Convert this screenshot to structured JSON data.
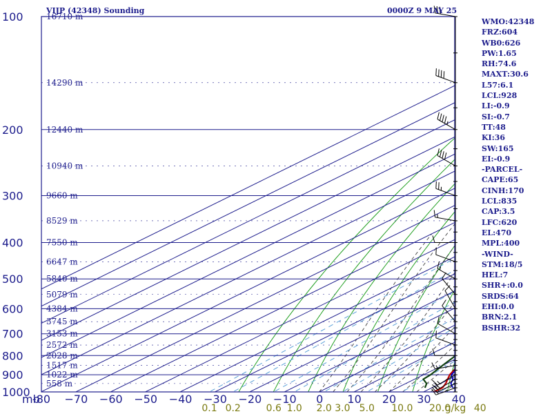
{
  "header": {
    "title": "VIJP (42348) Sounding",
    "datetime": "0000Z  9 MAY 25"
  },
  "indices": [
    "WMO:42348",
    "FRZ:604",
    "WB0:626",
    "PW:1.65",
    "RH:74.6",
    "MAXT:30.6",
    "L57:6.1",
    "LCL:928",
    "LI:-0.9",
    "SI:-0.7",
    "TT:48",
    "KI:36",
    "SW:165",
    "EI:-0.9",
    "-PARCEL-",
    "CAPE:65",
    "CINH:170",
    "LCL:835",
    "CAP:3.5",
    "LFC:620",
    "EL:470",
    "MPL:400",
    "-WIND-",
    "STM:18/5",
    "HEL:7",
    "SHR+:0.0",
    "SRDS:64",
    "EHI:0.0",
    "BRN:2.1",
    "BSHR:32"
  ],
  "colors": {
    "frame": "#1c1c8c",
    "isotherm": "#1c1c8c",
    "dry_adiabat": "#1f9e1f",
    "moist_adiabat": "#3a3a3a",
    "mixing_ratio": "#5aa0d8",
    "temperature": "#c00000",
    "dewpoint": "#104010",
    "parcel": "#0000c0",
    "mixing_label": "#7a7a10",
    "wind": "#000000"
  },
  "chart_data": {
    "type": "line",
    "xlabel": "",
    "ylabel": "",
    "pressure_unit_label": "mb",
    "mixing_ratio_unit_label": "g/kg",
    "xlim": [
      -80,
      40
    ],
    "ylim": [
      1000,
      100
    ],
    "y_scale": "log",
    "grid": true,
    "pressure_ticks": [
      1000,
      900,
      800,
      700,
      600,
      500,
      400,
      300,
      200,
      100
    ],
    "pressure_tick_labels": [
      "1000",
      "900",
      "800",
      "700",
      "600",
      "500",
      "400",
      "300",
      "200",
      "100"
    ],
    "temperature_ticks": [
      -80,
      -70,
      -60,
      -50,
      -40,
      -30,
      -20,
      -10,
      0,
      10,
      20,
      30,
      40
    ],
    "temperature_tick_labels": [
      "-80",
      "−70",
      "−60",
      "−50",
      "−40",
      "−30",
      "−20",
      "−10",
      "0",
      "10",
      "20",
      "30",
      "40"
    ],
    "height_labels": [
      {
        "p": 100,
        "label": "16710 m"
      },
      {
        "p": 150,
        "label": "14290 m"
      },
      {
        "p": 200,
        "label": "12440 m"
      },
      {
        "p": 250,
        "label": "10940 m"
      },
      {
        "p": 300,
        "label": "9660 m"
      },
      {
        "p": 350,
        "label": "8529 m"
      },
      {
        "p": 400,
        "label": "7550 m"
      },
      {
        "p": 450,
        "label": "6647 m"
      },
      {
        "p": 500,
        "label": "5840 m"
      },
      {
        "p": 550,
        "label": "5079 m"
      },
      {
        "p": 600,
        "label": "4384 m"
      },
      {
        "p": 650,
        "label": "3745 m"
      },
      {
        "p": 700,
        "label": "3153 m"
      },
      {
        "p": 750,
        "label": "2572 m"
      },
      {
        "p": 800,
        "label": "2028 m"
      },
      {
        "p": 850,
        "label": "1517 m"
      },
      {
        "p": 900,
        "label": "1022 m"
      },
      {
        "p": 950,
        "label": "558 m"
      }
    ],
    "mixing_ratio_labels": [
      {
        "value": 0.1,
        "label": "0.1"
      },
      {
        "value": 0.2,
        "label": "0.2"
      },
      {
        "value": 0.6,
        "label": "0.6"
      },
      {
        "value": 1.0,
        "label": "1.0"
      },
      {
        "value": 2.0,
        "label": "2.0"
      },
      {
        "value": 3.0,
        "label": "3.0"
      },
      {
        "value": 5.0,
        "label": "5.0"
      },
      {
        "value": 10.0,
        "label": "10.0"
      },
      {
        "value": 20.0,
        "label": "20.0"
      },
      {
        "value": 40.0,
        "label": "40"
      }
    ],
    "series": [
      {
        "key": "temperature",
        "points": [
          [
            1000,
            23
          ],
          [
            975,
            23
          ],
          [
            950,
            21.5
          ],
          [
            925,
            19.5
          ],
          [
            900,
            17.5
          ],
          [
            850,
            14.5
          ],
          [
            800,
            11
          ],
          [
            700,
            4
          ],
          [
            600,
            -3
          ],
          [
            500,
            -10
          ],
          [
            400,
            -18
          ],
          [
            300,
            -30
          ],
          [
            250,
            -38
          ],
          [
            200,
            -48
          ],
          [
            150,
            -60
          ],
          [
            100,
            -73
          ]
        ]
      },
      {
        "key": "dewpoint",
        "points": [
          [
            975,
            18
          ],
          [
            950,
            16
          ],
          [
            925,
            12.5
          ],
          [
            900,
            12
          ],
          [
            850,
            10
          ],
          [
            800,
            8
          ],
          [
            700,
            0
          ],
          [
            600,
            -7
          ],
          [
            500,
            -13
          ],
          [
            400,
            -23
          ],
          [
            300,
            -45
          ],
          [
            250,
            -55
          ],
          [
            200,
            -70
          ]
        ]
      },
      {
        "key": "parcel",
        "points": [
          [
            975,
            26
          ],
          [
            950,
            23
          ],
          [
            925,
            21
          ],
          [
            900,
            18
          ],
          [
            850,
            15
          ],
          [
            800,
            12
          ],
          [
            700,
            5
          ],
          [
            600,
            -2
          ],
          [
            500,
            -10
          ],
          [
            400,
            -20
          ],
          [
            300,
            -36
          ],
          [
            250,
            -47
          ],
          [
            200,
            -60
          ],
          [
            150,
            -78
          ]
        ]
      }
    ],
    "winds": [
      {
        "p": 975,
        "dir": 250,
        "spd": 15
      },
      {
        "p": 950,
        "dir": 245,
        "spd": 20
      },
      {
        "p": 925,
        "dir": 240,
        "spd": 20
      },
      {
        "p": 900,
        "dir": 240,
        "spd": 15
      },
      {
        "p": 850,
        "dir": 260,
        "spd": 15
      },
      {
        "p": 800,
        "dir": 270,
        "spd": 10
      },
      {
        "p": 750,
        "dir": 290,
        "spd": 10
      },
      {
        "p": 700,
        "dir": 300,
        "spd": 10
      },
      {
        "p": 650,
        "dir": 320,
        "spd": 10
      },
      {
        "p": 600,
        "dir": 330,
        "spd": 10
      },
      {
        "p": 550,
        "dir": 320,
        "spd": 10
      },
      {
        "p": 500,
        "dir": 300,
        "spd": 15
      },
      {
        "p": 450,
        "dir": 290,
        "spd": 10
      },
      {
        "p": 400,
        "dir": 270,
        "spd": 10
      },
      {
        "p": 350,
        "dir": 280,
        "spd": 15
      },
      {
        "p": 300,
        "dir": 290,
        "spd": 25
      },
      {
        "p": 250,
        "dir": 300,
        "spd": 40
      },
      {
        "p": 200,
        "dir": 300,
        "spd": 45
      },
      {
        "p": 150,
        "dir": 290,
        "spd": 40
      },
      {
        "p": 100,
        "dir": 280,
        "spd": 30
      }
    ]
  }
}
